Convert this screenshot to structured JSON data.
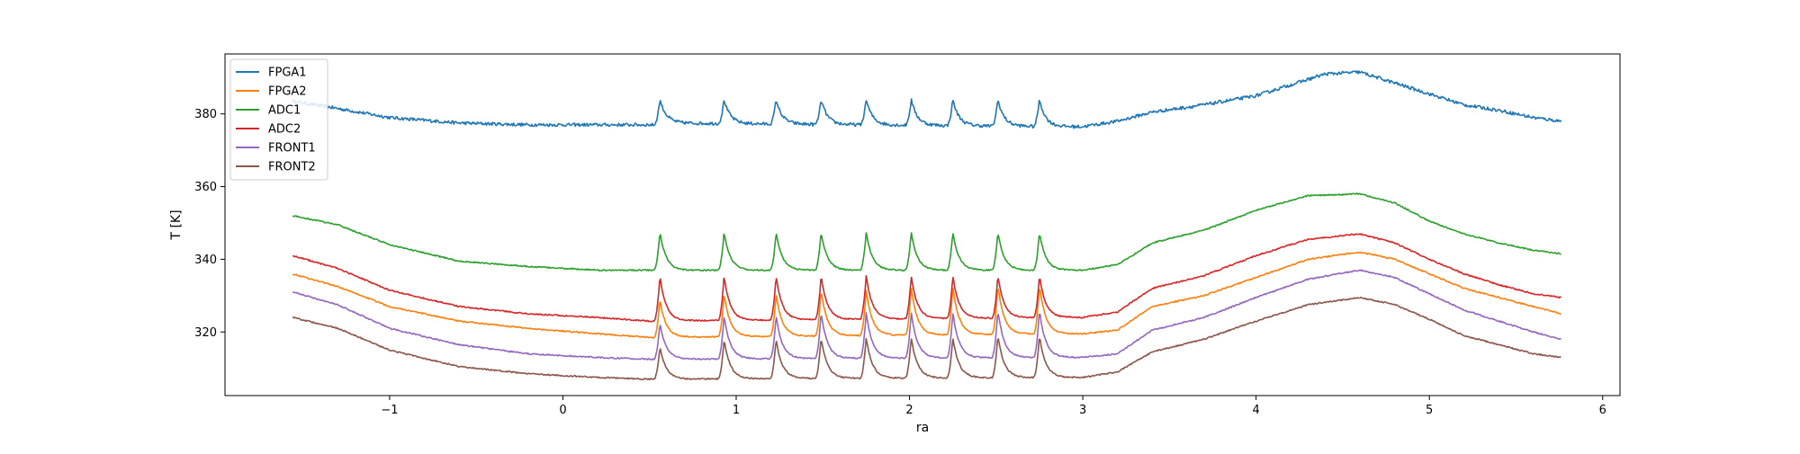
{
  "chart_data": {
    "type": "line",
    "title": "",
    "xlabel": "ra",
    "ylabel": "T [K]",
    "xlim": [
      -1.95,
      6.1
    ],
    "ylim": [
      302.5,
      396.5
    ],
    "xticks": [
      -1,
      0,
      1,
      2,
      3,
      4,
      5,
      6
    ],
    "xtick_labels": [
      "−1",
      "0",
      "1",
      "2",
      "3",
      "4",
      "5",
      "6"
    ],
    "yticks": [
      320,
      340,
      360,
      380
    ],
    "ytick_labels": [
      "320",
      "340",
      "360",
      "380"
    ],
    "grid": false,
    "legend_position": "top-left",
    "peaks_ra": [
      0.56,
      0.93,
      1.23,
      1.49,
      1.75,
      2.01,
      2.25,
      2.51,
      2.75
    ],
    "series": [
      {
        "name": "FPGA1",
        "color": "#1f77b4",
        "x": [
          -1.56,
          -1.3,
          -1.0,
          -0.6,
          -0.2,
          0.2,
          0.5,
          0.54,
          0.56,
          0.6,
          0.93,
          1.23,
          1.49,
          1.75,
          2.01,
          2.25,
          2.51,
          2.75,
          2.85,
          3.0,
          3.2,
          3.4,
          3.7,
          4.0,
          4.2,
          4.4,
          4.6,
          4.8,
          5.0,
          5.2,
          5.4,
          5.6,
          5.76
        ],
        "y": [
          383.5,
          381.5,
          379.0,
          377.5,
          377.0,
          377.0,
          377.0,
          377.0,
          384.0,
          377.5,
          384.0,
          384.0,
          384.0,
          384.0,
          384.0,
          384.0,
          384.0,
          384.0,
          376.5,
          376.5,
          378.0,
          380.5,
          382.5,
          385.0,
          388.0,
          391.0,
          391.5,
          388.5,
          385.5,
          382.5,
          381.0,
          379.0,
          378.0
        ]
      },
      {
        "name": "FPGA2",
        "color": "#ff7f0e",
        "x": [
          -1.56,
          -1.3,
          -1.0,
          -0.6,
          -0.2,
          0.2,
          0.5,
          0.56,
          0.93,
          1.23,
          1.49,
          1.75,
          2.01,
          2.25,
          2.51,
          2.75,
          2.85,
          3.0,
          3.2,
          3.4,
          3.7,
          4.0,
          4.3,
          4.6,
          4.8,
          5.0,
          5.2,
          5.4,
          5.6,
          5.76
        ],
        "y": [
          336.0,
          332.5,
          327.0,
          323.0,
          321.0,
          319.5,
          318.5,
          329.0,
          330.5,
          330.5,
          331.5,
          331.5,
          332.5,
          332.5,
          333.0,
          333.0,
          319.5,
          319.5,
          320.5,
          327.0,
          330.0,
          335.0,
          340.0,
          342.0,
          340.0,
          336.0,
          332.0,
          329.5,
          327.0,
          325.0
        ]
      },
      {
        "name": "ADC1",
        "color": "#2ca02c",
        "x": [
          -1.56,
          -1.3,
          -1.0,
          -0.6,
          -0.2,
          0.2,
          0.5,
          0.56,
          0.93,
          1.23,
          1.49,
          1.75,
          2.01,
          2.25,
          2.51,
          2.75,
          2.85,
          3.0,
          3.2,
          3.4,
          3.7,
          4.0,
          4.3,
          4.6,
          4.8,
          5.0,
          5.2,
          5.4,
          5.6,
          5.76
        ],
        "y": [
          352.0,
          349.5,
          344.0,
          339.5,
          338.0,
          337.0,
          337.0,
          347.5,
          347.5,
          347.5,
          347.5,
          347.5,
          347.5,
          347.5,
          347.5,
          347.5,
          337.0,
          337.0,
          338.5,
          344.5,
          348.0,
          353.5,
          357.5,
          358.0,
          355.5,
          350.5,
          347.0,
          344.5,
          342.5,
          341.5
        ]
      },
      {
        "name": "ADC2",
        "color": "#d62728",
        "x": [
          -1.56,
          -1.3,
          -1.0,
          -0.6,
          -0.2,
          0.2,
          0.5,
          0.56,
          0.93,
          1.23,
          1.49,
          1.75,
          2.01,
          2.25,
          2.51,
          2.75,
          2.85,
          3.0,
          3.2,
          3.4,
          3.7,
          4.0,
          4.3,
          4.6,
          4.8,
          5.0,
          5.2,
          5.4,
          5.6,
          5.76
        ],
        "y": [
          341.0,
          337.5,
          331.5,
          327.0,
          325.0,
          324.0,
          323.0,
          335.5,
          335.5,
          335.5,
          335.5,
          335.5,
          335.5,
          335.5,
          335.5,
          335.5,
          324.0,
          324.0,
          325.5,
          332.0,
          335.5,
          341.0,
          345.5,
          347.0,
          344.5,
          340.0,
          336.0,
          333.0,
          330.5,
          329.5
        ]
      },
      {
        "name": "FRONT1",
        "color": "#9467bd",
        "x": [
          -1.56,
          -1.3,
          -1.0,
          -0.6,
          -0.2,
          0.2,
          0.5,
          0.56,
          0.93,
          1.23,
          1.49,
          1.75,
          2.01,
          2.25,
          2.51,
          2.75,
          2.85,
          3.0,
          3.2,
          3.4,
          3.7,
          4.0,
          4.3,
          4.6,
          4.8,
          5.0,
          5.2,
          5.4,
          5.6,
          5.76
        ],
        "y": [
          331.0,
          327.5,
          321.0,
          316.5,
          314.0,
          313.0,
          312.5,
          322.5,
          324.5,
          324.5,
          325.5,
          325.5,
          325.5,
          325.5,
          326.0,
          326.0,
          313.0,
          313.0,
          314.0,
          320.5,
          324.0,
          329.5,
          334.5,
          337.0,
          335.0,
          330.5,
          326.0,
          323.0,
          320.0,
          318.0
        ]
      },
      {
        "name": "FRONT2",
        "color": "#8c564b",
        "x": [
          -1.56,
          -1.3,
          -1.0,
          -0.6,
          -0.2,
          0.2,
          0.5,
          0.56,
          0.93,
          1.23,
          1.49,
          1.75,
          2.01,
          2.25,
          2.51,
          2.75,
          2.85,
          3.0,
          3.2,
          3.4,
          3.7,
          4.0,
          4.3,
          4.6,
          4.8,
          5.0,
          5.2,
          5.4,
          5.6,
          5.76
        ],
        "y": [
          324.0,
          321.0,
          315.0,
          310.5,
          308.5,
          307.5,
          307.0,
          316.0,
          318.0,
          318.0,
          318.5,
          318.5,
          318.5,
          318.5,
          319.0,
          319.0,
          307.5,
          307.5,
          309.0,
          314.5,
          318.0,
          323.0,
          327.5,
          329.5,
          327.5,
          323.5,
          319.0,
          316.5,
          314.0,
          313.0
        ]
      }
    ]
  }
}
